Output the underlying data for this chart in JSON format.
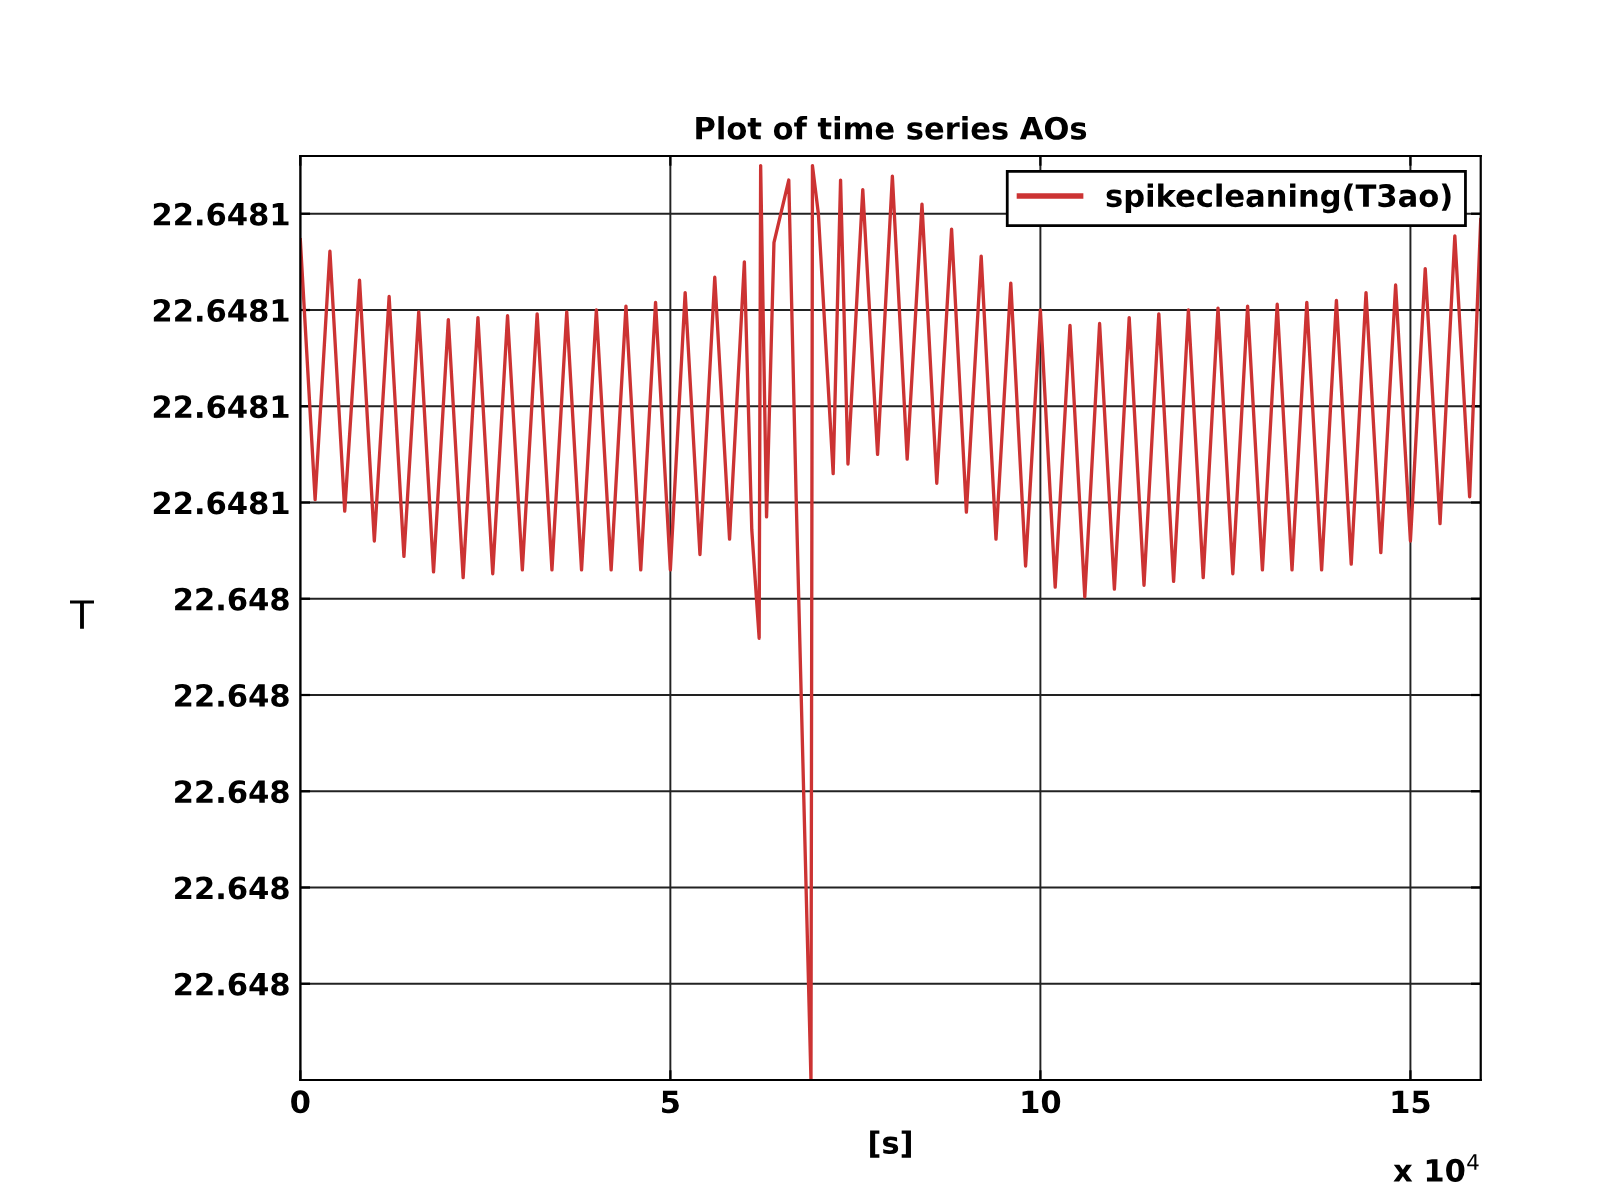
{
  "chart_data": {
    "type": "line",
    "title": "Plot of time series AOs",
    "xlabel": "[s]",
    "ylabel": "T",
    "annotations": [
      "x 10$^{4}$"
    ],
    "xlim": [
      0,
      15.95
    ],
    "xticks": [
      0,
      5,
      10,
      15
    ],
    "ylim": [
      22.64799,
      22.648086
    ],
    "yticks": [
      {
        "value": 22.648,
        "label": "22.648"
      },
      {
        "value": 22.64801,
        "label": "22.648"
      },
      {
        "value": 22.64802,
        "label": "22.648"
      },
      {
        "value": 22.64803,
        "label": "22.648"
      },
      {
        "value": 22.64804,
        "label": "22.648"
      },
      {
        "value": 22.64805,
        "label": "22.6481"
      },
      {
        "value": 22.64806,
        "label": "22.6481"
      },
      {
        "value": 22.64807,
        "label": "22.6481"
      },
      {
        "value": 22.64808,
        "label": "22.6481"
      }
    ],
    "grid": true,
    "legend": "top right",
    "series": [
      {
        "name": "spikecleaning(T3ao)",
        "color": "#cc3333",
        "x": [
          0,
          0.2,
          0.4,
          0.6,
          0.8,
          1.0,
          1.2,
          1.4,
          1.6,
          1.8,
          2.0,
          2.2,
          2.4,
          2.6,
          2.8,
          3.0,
          3.2,
          3.4,
          3.6,
          3.8,
          4.0,
          4.2,
          4.4,
          4.6,
          4.8,
          5.0,
          5.2,
          5.4,
          5.6,
          5.8,
          6.0,
          6.1,
          6.2,
          6.22,
          6.3,
          6.4,
          6.6,
          6.7,
          6.9,
          6.92,
          7.0,
          7.2,
          7.3,
          7.4,
          7.6,
          7.8,
          8.0,
          8.2,
          8.4,
          8.6,
          8.8,
          9.0,
          9.2,
          9.4,
          9.6,
          9.8,
          10.0,
          10.2,
          10.4,
          10.6,
          10.8,
          11.0,
          11.2,
          11.4,
          11.6,
          11.8,
          12.0,
          12.2,
          12.4,
          12.6,
          12.8,
          13.0,
          13.2,
          13.4,
          13.6,
          13.8,
          14.0,
          14.2,
          14.4,
          14.6,
          14.8,
          15.0,
          15.2,
          15.4,
          15.6,
          15.8,
          15.95
        ],
        "values": [
          22.6480773,
          22.6480503,
          22.6480761,
          22.6480491,
          22.6480731,
          22.648046,
          22.6480714,
          22.6480444,
          22.6480698,
          22.6480428,
          22.648069,
          22.6480422,
          22.6480692,
          22.6480426,
          22.6480694,
          22.648043,
          22.6480696,
          22.648043,
          22.6480698,
          22.648043,
          22.64807,
          22.648043,
          22.6480704,
          22.648043,
          22.6480708,
          22.648043,
          22.6480718,
          22.6480446,
          22.6480734,
          22.6480462,
          22.648075,
          22.6480472,
          22.6480359,
          22.648085,
          22.6480485,
          22.648077,
          22.6480835,
          22.6480505,
          22.64799,
          22.648085,
          22.64808,
          22.648053,
          22.6480835,
          22.648054,
          22.6480825,
          22.648055,
          22.6480839,
          22.6480545,
          22.648081,
          22.648052,
          22.6480784,
          22.648049,
          22.6480756,
          22.6480462,
          22.6480728,
          22.6480434,
          22.64807,
          22.6480412,
          22.6480684,
          22.6480402,
          22.6480686,
          22.648041,
          22.6480692,
          22.6480414,
          22.6480696,
          22.6480418,
          22.64807,
          22.6480422,
          22.6480702,
          22.6480426,
          22.6480704,
          22.648043,
          22.6480706,
          22.648043,
          22.6480708,
          22.648043,
          22.648071,
          22.6480436,
          22.6480718,
          22.6480448,
          22.6480726,
          22.648046,
          22.6480743,
          22.6480478,
          22.6480777,
          22.6480506,
          22.6480794
        ]
      }
    ]
  }
}
